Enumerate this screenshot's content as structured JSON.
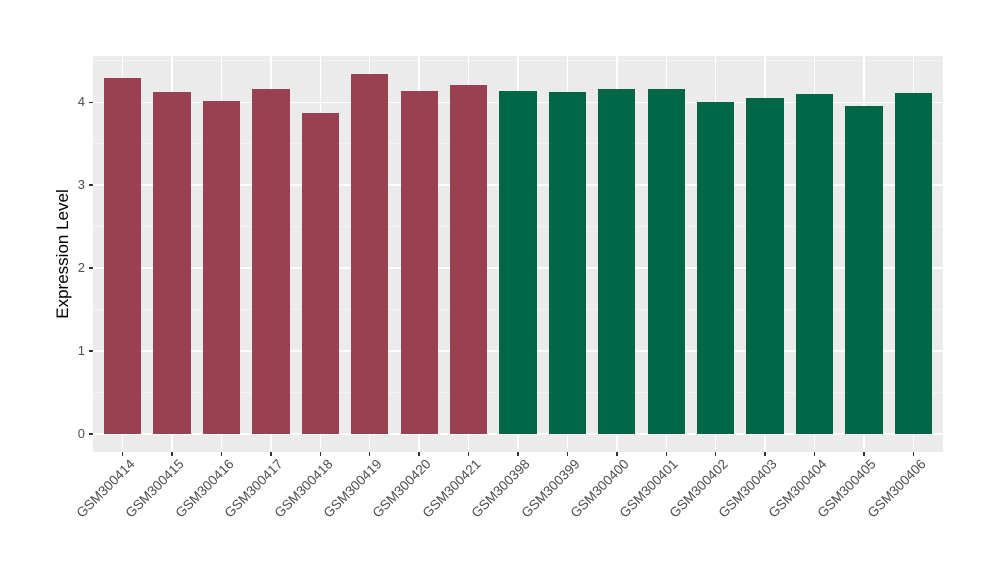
{
  "chart_data": {
    "type": "bar",
    "title": "",
    "xlabel": "",
    "ylabel": "Expression Level",
    "categories": [
      "GSM300414",
      "GSM300415",
      "GSM300416",
      "GSM300417",
      "GSM300418",
      "GSM300419",
      "GSM300420",
      "GSM300421",
      "GSM300398",
      "GSM300399",
      "GSM300400",
      "GSM300401",
      "GSM300402",
      "GSM300403",
      "GSM300404",
      "GSM300405",
      "GSM300406"
    ],
    "values": [
      4.3,
      4.13,
      4.02,
      4.16,
      3.87,
      4.34,
      4.14,
      4.21,
      4.14,
      4.12,
      4.16,
      4.16,
      4.01,
      4.05,
      4.1,
      3.96,
      4.11
    ],
    "bar_colors": [
      "#9A4151",
      "#9A4151",
      "#9A4151",
      "#9A4151",
      "#9A4151",
      "#9A4151",
      "#9A4151",
      "#9A4151",
      "#006646",
      "#006646",
      "#006646",
      "#006646",
      "#006646",
      "#006646",
      "#006646",
      "#006646",
      "#006646"
    ],
    "group_colors": {
      "left_group": "#9A4151",
      "right_group": "#006646"
    },
    "y_ticks": [
      0,
      1,
      2,
      3,
      4
    ],
    "y_minor_ticks": [
      0.5,
      1.5,
      2.5,
      3.5,
      4.5
    ],
    "ylim": [
      -0.22,
      4.56
    ],
    "grid": true,
    "legend": "none",
    "panel_bg": "#EBEBEB",
    "grid_major_color": "#FFFFFF",
    "grid_minor_color": "#F4F4F4",
    "tick_color": "#333333",
    "axis_text_color": "#4D4D4D",
    "axis_title_color": "#000000"
  }
}
